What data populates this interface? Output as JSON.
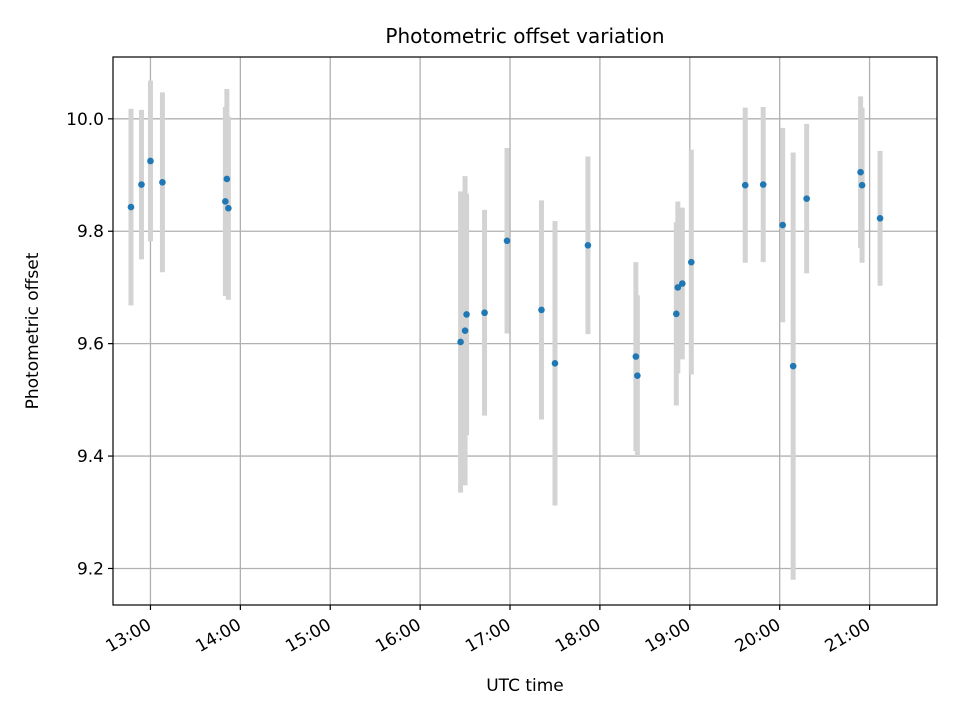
{
  "chart_data": {
    "type": "scatter",
    "title": "Photometric offset variation",
    "xlabel": "UTC time",
    "ylabel": "Photometric offset",
    "xlim": [
      "12:35",
      "21:45"
    ],
    "ylim": [
      9.135,
      10.11
    ],
    "grid": true,
    "x_ticks": [
      "13:00",
      "14:00",
      "15:00",
      "16:00",
      "17:00",
      "18:00",
      "19:00",
      "20:00",
      "21:00"
    ],
    "y_ticks": [
      "9.2",
      "9.4",
      "9.6",
      "9.8",
      "10.0"
    ],
    "marker_color": "#1f77b4",
    "errorbar_color": "#d3d3d3",
    "points": [
      {
        "x": "12:47",
        "y": 9.843,
        "err": 0.175
      },
      {
        "x": "12:54",
        "y": 9.883,
        "err": 0.133
      },
      {
        "x": "13:00",
        "y": 9.925,
        "err": 0.143
      },
      {
        "x": "13:08",
        "y": 9.887,
        "err": 0.16
      },
      {
        "x": "13:50",
        "y": 9.853,
        "err": 0.168
      },
      {
        "x": "13:51",
        "y": 9.893,
        "err": 0.16
      },
      {
        "x": "13:52",
        "y": 9.841,
        "err": 0.163
      },
      {
        "x": "16:27",
        "y": 9.603,
        "err": 0.268
      },
      {
        "x": "16:30",
        "y": 9.623,
        "err": 0.275
      },
      {
        "x": "16:31",
        "y": 9.652,
        "err": 0.215
      },
      {
        "x": "16:43",
        "y": 9.655,
        "err": 0.183
      },
      {
        "x": "16:58",
        "y": 9.783,
        "err": 0.165
      },
      {
        "x": "17:21",
        "y": 9.66,
        "err": 0.195
      },
      {
        "x": "17:30",
        "y": 9.565,
        "err": 0.253
      },
      {
        "x": "17:52",
        "y": 9.775,
        "err": 0.158
      },
      {
        "x": "18:24",
        "y": 9.577,
        "err": 0.168
      },
      {
        "x": "18:25",
        "y": 9.543,
        "err": 0.143
      },
      {
        "x": "18:51",
        "y": 9.653,
        "err": 0.163
      },
      {
        "x": "18:52",
        "y": 9.7,
        "err": 0.153
      },
      {
        "x": "18:55",
        "y": 9.707,
        "err": 0.135
      },
      {
        "x": "19:01",
        "y": 9.745,
        "err": 0.2
      },
      {
        "x": "19:37",
        "y": 9.882,
        "err": 0.138
      },
      {
        "x": "19:49",
        "y": 9.883,
        "err": 0.138
      },
      {
        "x": "20:02",
        "y": 9.811,
        "err": 0.173
      },
      {
        "x": "20:09",
        "y": 9.56,
        "err": 0.38
      },
      {
        "x": "20:18",
        "y": 9.858,
        "err": 0.133
      },
      {
        "x": "20:54",
        "y": 9.905,
        "err": 0.135
      },
      {
        "x": "20:55",
        "y": 9.882,
        "err": 0.138
      },
      {
        "x": "21:07",
        "y": 9.823,
        "err": 0.12
      }
    ]
  }
}
